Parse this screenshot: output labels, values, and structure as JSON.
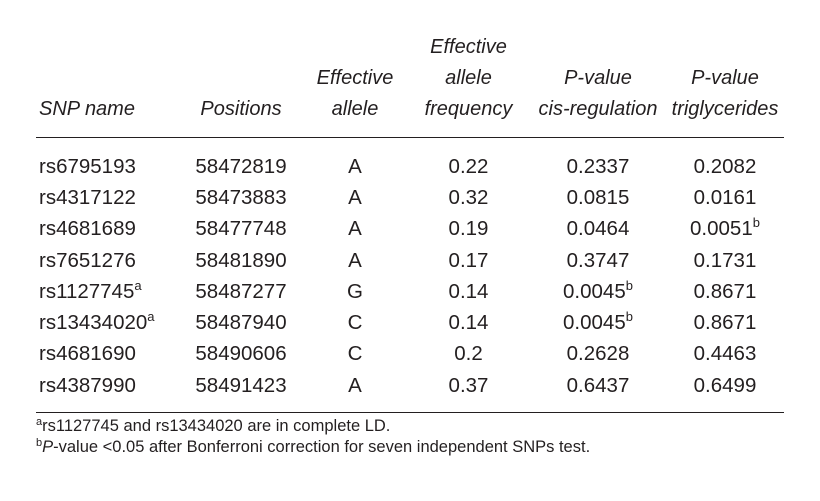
{
  "table": {
    "headers": [
      {
        "lines": [
          "SNP name"
        ]
      },
      {
        "lines": [
          "Positions"
        ]
      },
      {
        "lines": [
          "Effective",
          "allele"
        ]
      },
      {
        "lines": [
          "Effective",
          "allele",
          "frequency"
        ]
      },
      {
        "lines": [
          "P-value",
          "cis-regulation"
        ]
      },
      {
        "lines": [
          "P-value",
          "triglycerides"
        ]
      }
    ],
    "rows": [
      {
        "snp": "rs6795193",
        "snp_sup": "",
        "position": "58472819",
        "allele": "A",
        "freq": "0.22",
        "cis": "0.2337",
        "cis_sup": "",
        "tg": "0.2082",
        "tg_sup": ""
      },
      {
        "snp": "rs4317122",
        "snp_sup": "",
        "position": "58473883",
        "allele": "A",
        "freq": "0.32",
        "cis": "0.0815",
        "cis_sup": "",
        "tg": "0.0161",
        "tg_sup": ""
      },
      {
        "snp": "rs4681689",
        "snp_sup": "",
        "position": "58477748",
        "allele": "A",
        "freq": "0.19",
        "cis": "0.0464",
        "cis_sup": "",
        "tg": "0.0051",
        "tg_sup": "b"
      },
      {
        "snp": "rs7651276",
        "snp_sup": "",
        "position": "58481890",
        "allele": "A",
        "freq": "0.17",
        "cis": "0.3747",
        "cis_sup": "",
        "tg": "0.1731",
        "tg_sup": ""
      },
      {
        "snp": "rs1127745",
        "snp_sup": "a",
        "position": "58487277",
        "allele": "G",
        "freq": "0.14",
        "cis": "0.0045",
        "cis_sup": "b",
        "tg": "0.8671",
        "tg_sup": ""
      },
      {
        "snp": "rs13434020",
        "snp_sup": "a",
        "position": "58487940",
        "allele": "C",
        "freq": "0.14",
        "cis": "0.0045",
        "cis_sup": "b",
        "tg": "0.8671",
        "tg_sup": ""
      },
      {
        "snp": "rs4681690",
        "snp_sup": "",
        "position": "58490606",
        "allele": "C",
        "freq": "0.2",
        "cis": "0.2628",
        "cis_sup": "",
        "tg": "0.4463",
        "tg_sup": ""
      },
      {
        "snp": "rs4387990",
        "snp_sup": "",
        "position": "58491423",
        "allele": "A",
        "freq": "0.37",
        "cis": "0.6437",
        "cis_sup": "",
        "tg": "0.6499",
        "tg_sup": ""
      }
    ]
  },
  "footnotes": {
    "a_marker": "a",
    "a_text": "rs1127745 and rs13434020 are in complete LD.",
    "b_marker": "b",
    "b_italic": "P",
    "b_text": "-value <0.05 after Bonferroni correction for seven independent SNPs test."
  }
}
